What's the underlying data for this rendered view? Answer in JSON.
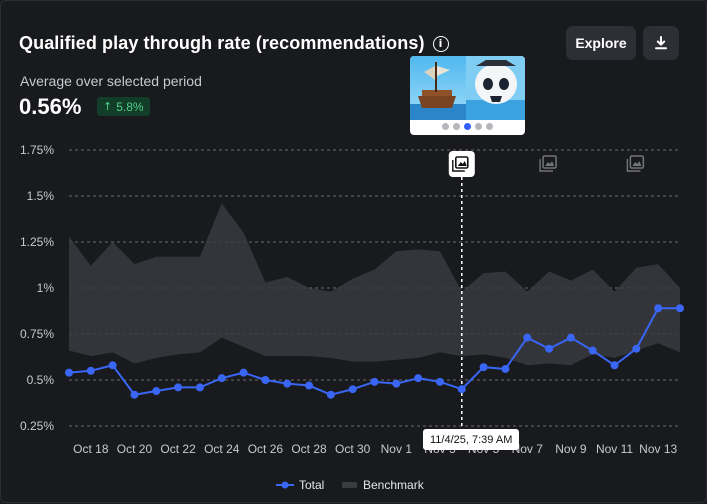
{
  "header": {
    "title": "Qualified play through rate (recommendations)",
    "info_icon": "info-icon",
    "subtitle": "Average over selected period",
    "value": "0.56%",
    "change": "5.8%",
    "change_icon": "arrow-up-icon"
  },
  "toolbar": {
    "explore_label": "Explore",
    "download_icon": "download-icon"
  },
  "annotation": {
    "tooltip": "11/4/25, 7:39 AM",
    "marker_icon": "image-annotation-icon"
  },
  "colors": {
    "total": "#3a66f5",
    "benchmark": "#3a3b3f",
    "badge_text": "#4fd18b",
    "badge_bg": "#123d28"
  },
  "chart_data": {
    "type": "line",
    "x": [
      "Oct 17",
      "Oct 18",
      "Oct 19",
      "Oct 20",
      "Oct 21",
      "Oct 22",
      "Oct 23",
      "Oct 24",
      "Oct 25",
      "Oct 26",
      "Oct 27",
      "Oct 28",
      "Oct 29",
      "Oct 30",
      "Oct 31",
      "Nov 1",
      "Nov 2",
      "Nov 3",
      "Nov 4",
      "Nov 5",
      "Nov 6",
      "Nov 7",
      "Nov 8",
      "Nov 9",
      "Nov 10",
      "Nov 11",
      "Nov 12",
      "Nov 13",
      "Nov 14"
    ],
    "xticks": [
      "Oct 18",
      "Oct 20",
      "Oct 22",
      "Oct 24",
      "Oct 26",
      "Oct 28",
      "Oct 30",
      "Nov 1",
      "Nov 3",
      "Nov 5",
      "Nov 7",
      "Nov 9",
      "Nov 11",
      "Nov 13"
    ],
    "yticks": [
      "1.75%",
      "1.5%",
      "1.25%",
      "1%",
      "0.75%",
      "0.5%",
      "0.25%"
    ],
    "ylim": [
      0.25,
      1.75
    ],
    "grid": true,
    "legend": "bottom-center",
    "series": [
      {
        "name": "Total",
        "values": [
          0.54,
          0.55,
          0.58,
          0.42,
          0.44,
          0.46,
          0.46,
          0.51,
          0.54,
          0.5,
          0.48,
          0.47,
          0.42,
          0.45,
          0.49,
          0.48,
          0.51,
          0.49,
          0.45,
          0.57,
          0.56,
          0.73,
          0.67,
          0.73,
          0.66,
          0.58,
          0.67,
          0.89,
          0.89
        ]
      },
      {
        "name": "Benchmark",
        "band_upper": [
          1.28,
          1.12,
          1.25,
          1.13,
          1.17,
          1.17,
          1.17,
          1.46,
          1.3,
          1.03,
          1.06,
          1.0,
          0.98,
          1.05,
          1.1,
          1.2,
          1.21,
          1.2,
          0.98,
          1.08,
          1.09,
          0.98,
          1.09,
          1.04,
          1.1,
          0.98,
          1.11,
          1.13,
          1.0
        ],
        "band_lower": [
          0.66,
          0.63,
          0.65,
          0.59,
          0.62,
          0.64,
          0.65,
          0.73,
          0.68,
          0.63,
          0.63,
          0.63,
          0.62,
          0.6,
          0.6,
          0.61,
          0.62,
          0.65,
          0.63,
          0.64,
          0.62,
          0.58,
          0.59,
          0.58,
          0.64,
          0.62,
          0.66,
          0.7,
          0.65
        ]
      }
    ],
    "annotation_markers": [
      {
        "x": "Nov 4",
        "active": true
      },
      {
        "x": "Nov 8",
        "active": false
      },
      {
        "x": "Nov 12",
        "active": false
      }
    ]
  }
}
